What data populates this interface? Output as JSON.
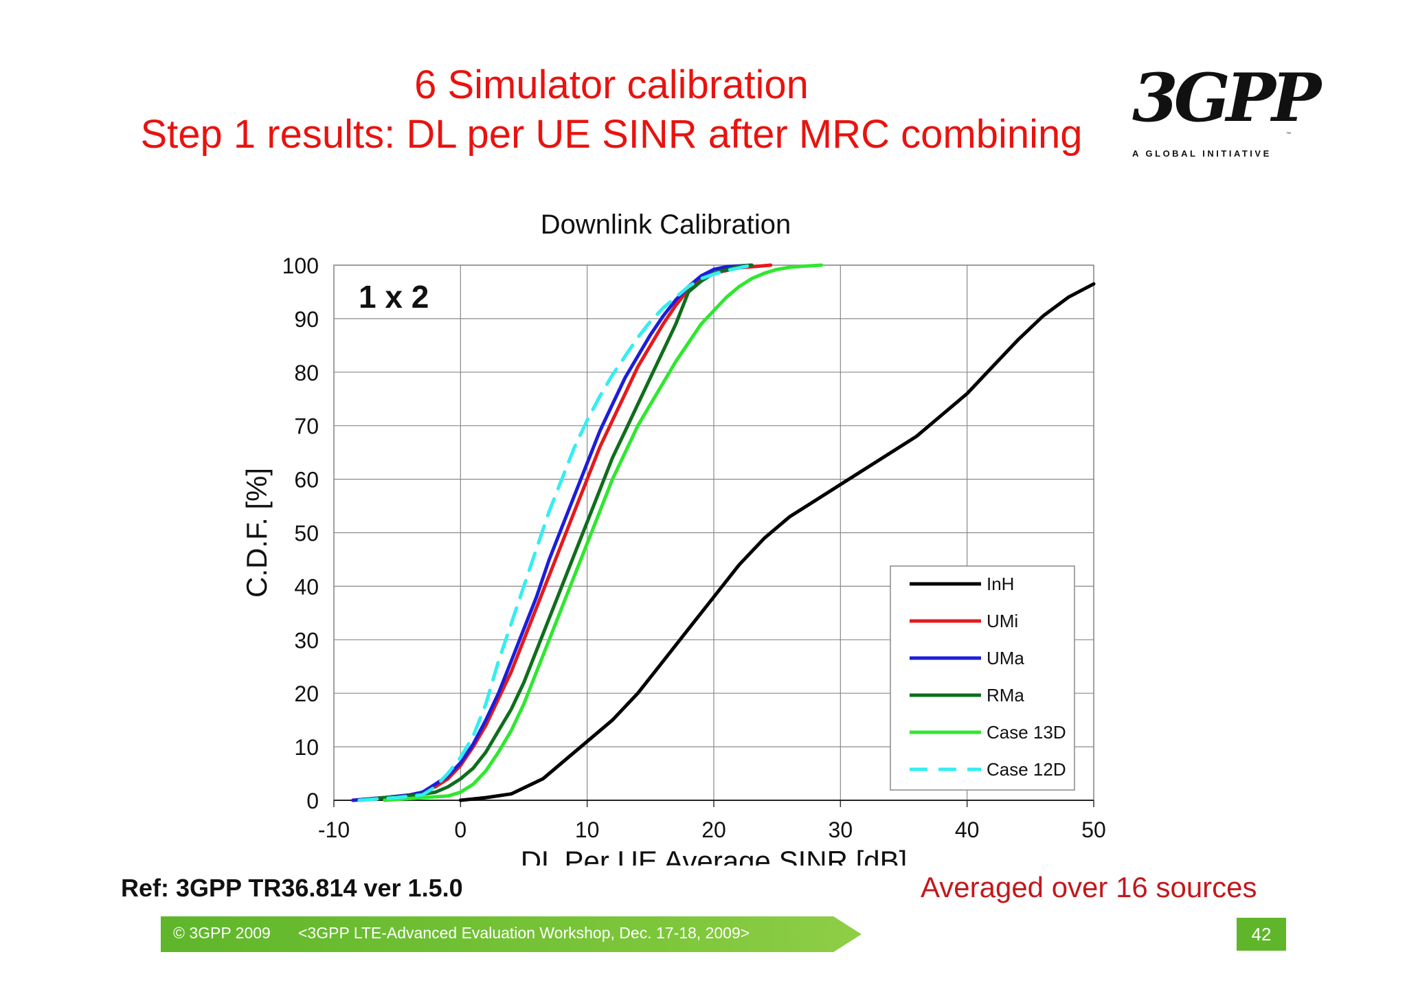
{
  "slide": {
    "title_line1": "6 Simulator calibration",
    "title_line2": "Step 1 results: DL per UE SINR after MRC combining",
    "logo": {
      "mark": "3GPP",
      "tagline": "A GLOBAL INITIATIVE"
    },
    "reference": "Ref: 3GPP TR36.814 ver 1.5.0",
    "note": "Averaged over 16 sources",
    "footer": {
      "copyright": "© 3GPP 2009",
      "event": "<3GPP LTE-Advanced Evaluation Workshop, Dec. 17-18, 2009>"
    },
    "page_number": "42",
    "colors": {
      "title": "#e8130f",
      "note": "#c3181c",
      "footer_green": "#5fb62a"
    }
  },
  "chart_data": {
    "type": "line",
    "title": "Downlink Calibration",
    "annotation": "1 x 2",
    "xlabel": "DL Per UE Average SINR [dB]",
    "ylabel": "C.D.F. [%]",
    "xlim": [
      -10,
      50
    ],
    "ylim": [
      0,
      100
    ],
    "xticks": [
      -10,
      0,
      10,
      20,
      30,
      40,
      50
    ],
    "yticks": [
      0,
      10,
      20,
      30,
      40,
      50,
      60,
      70,
      80,
      90,
      100
    ],
    "grid": true,
    "legend_position": "lower-right",
    "series": [
      {
        "name": "InH",
        "color": "#000000",
        "dash": false,
        "x": [
          0,
          2,
          4,
          6.5,
          8.5,
          10,
          12,
          14,
          16,
          18,
          20,
          22,
          24,
          26,
          28,
          30,
          32,
          34,
          36,
          38,
          40,
          42,
          44,
          46,
          48,
          50
        ],
        "y": [
          0,
          0.5,
          1.2,
          4,
          8,
          11,
          15,
          20,
          26,
          32,
          38,
          44,
          49,
          53,
          56,
          59,
          62,
          65,
          68,
          72,
          76,
          81,
          86,
          90.5,
          94,
          96.5
        ]
      },
      {
        "name": "UMi",
        "color": "#e41a1c",
        "dash": false,
        "x": [
          -8.5,
          -6,
          -4,
          -3,
          -2,
          -1,
          0,
          1,
          2,
          3,
          4,
          5,
          6,
          7,
          8,
          9,
          10,
          11,
          12,
          13,
          14,
          15,
          16,
          17,
          18,
          19,
          20,
          22,
          24.5
        ],
        "y": [
          0,
          0.5,
          1,
          1.5,
          2.5,
          4,
          6.5,
          10,
          14,
          19,
          24,
          30,
          36,
          42,
          48,
          54,
          60,
          66,
          71,
          76,
          81,
          85,
          89,
          92.5,
          95.5,
          97.5,
          98.5,
          99.5,
          100
        ]
      },
      {
        "name": "UMa",
        "color": "#1d1ddb",
        "dash": false,
        "x": [
          -8.5,
          -6,
          -4,
          -3,
          -2,
          -1,
          0,
          1,
          2,
          3,
          4,
          5,
          6,
          7,
          8,
          9,
          10,
          11,
          12,
          13,
          14,
          15,
          16,
          17,
          18,
          19,
          20,
          21,
          23
        ],
        "y": [
          0,
          0.5,
          1,
          1.5,
          3,
          4.5,
          7,
          10.5,
          15,
          20,
          26,
          32,
          38,
          45,
          51,
          57,
          63,
          69,
          74,
          79,
          83,
          87,
          90.5,
          93.5,
          96,
          98,
          99.2,
          99.7,
          100
        ]
      },
      {
        "name": "RMa",
        "color": "#0f6e1b",
        "dash": false,
        "x": [
          -8,
          -6,
          -4,
          -2,
          -1,
          0,
          1,
          2,
          3,
          4,
          5,
          6,
          7,
          8,
          9,
          10,
          11,
          12,
          13,
          14,
          15,
          16,
          17,
          18,
          19,
          20,
          22,
          23
        ],
        "y": [
          0,
          0.5,
          0.8,
          1.5,
          2.5,
          4,
          6,
          9,
          13,
          17,
          22,
          28,
          34,
          40,
          46,
          52,
          58,
          64,
          69,
          74,
          79,
          84,
          89,
          95,
          97,
          98.5,
          99.8,
          100
        ]
      },
      {
        "name": "Case 13D",
        "color": "#2ee82e",
        "dash": false,
        "x": [
          -6,
          -3,
          -1,
          0,
          1,
          2,
          3,
          4,
          5,
          6,
          7,
          8,
          9,
          10,
          11,
          12,
          13,
          14,
          15,
          16,
          17,
          18,
          19,
          20,
          21,
          22,
          23,
          24,
          25,
          26,
          27,
          28.5
        ],
        "y": [
          0,
          0.5,
          0.8,
          1.5,
          3,
          5.5,
          9,
          13,
          18,
          24,
          30,
          36,
          42,
          48,
          54,
          60,
          65,
          70,
          74,
          78,
          82,
          85.5,
          89,
          91.5,
          94,
          96,
          97.5,
          98.5,
          99.2,
          99.6,
          99.8,
          100
        ]
      },
      {
        "name": "Case 12D",
        "color": "#33eef0",
        "dash": true,
        "x": [
          -8,
          -5,
          -3,
          -2,
          -1,
          0,
          1,
          2,
          3,
          4,
          5,
          6,
          7,
          8,
          9,
          10,
          11,
          12,
          13,
          14,
          15,
          16,
          17,
          18,
          19,
          20,
          21,
          22,
          23
        ],
        "y": [
          0,
          0.5,
          1,
          2.5,
          5,
          8,
          12,
          18,
          26,
          33,
          40,
          47,
          54,
          60,
          66,
          71,
          75.5,
          79.5,
          83,
          86.5,
          89.5,
          92,
          94,
          96,
          97.5,
          98.3,
          99,
          99.5,
          100
        ]
      }
    ]
  }
}
